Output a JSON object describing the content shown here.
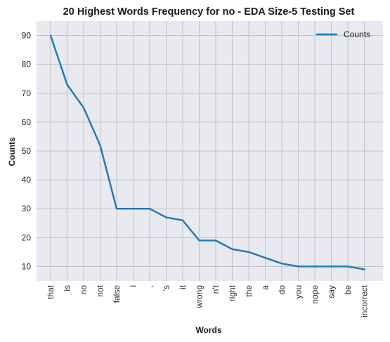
{
  "chart_data": {
    "type": "line",
    "title": "20 Highest Words Frequency for no - EDA Size-5 Testing Set",
    "xlabel": "Words",
    "ylabel": "Counts",
    "categories": [
      "that",
      "is",
      "no",
      "not",
      "false",
      "i",
      ",",
      "'s",
      "it",
      "wrong",
      "n't",
      "right",
      "the",
      "a",
      "do",
      "you",
      "nope",
      "say",
      "be",
      "incorrect"
    ],
    "series": [
      {
        "name": "Counts",
        "color": "#1f77b4",
        "values": [
          90,
          73,
          65,
          52,
          30,
          30,
          30,
          27,
          26,
          19,
          19,
          16,
          15,
          13,
          11,
          10,
          10,
          10,
          10,
          9
        ]
      }
    ],
    "ylim": [
      5,
      95
    ],
    "yticks": [
      10,
      20,
      30,
      40,
      50,
      60,
      70,
      80,
      90
    ],
    "grid": true,
    "legend_position": "top-right",
    "plot_background": "#e9e9f0",
    "grid_color": "#c4c4c4"
  }
}
